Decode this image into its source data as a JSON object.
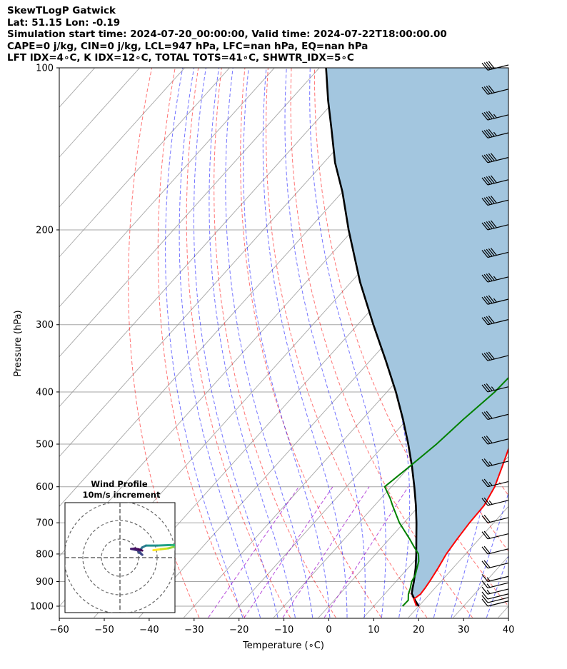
{
  "header": {
    "line1": "SkewTLogP Gatwick",
    "line2": "Lat: 51.15   Lon: -0.19",
    "line3": "Simulation start time: 2024-07-20_00:00:00, Valid time: 2024-07-22T18:00:00.00",
    "line4": "CAPE=0 j/kg, CIN=0 j/kg, LCL=947 hPa, LFC=nan hPa, EQ=nan hPa",
    "line5": "LFT IDX=4∘C, K IDX=12∘C, TOTAL TOTS=41∘C, SHWTR_IDX=5∘C"
  },
  "colors": {
    "temperature": "#ff0000",
    "dewpoint": "#008000",
    "parcel": "#000000",
    "shade": "#a3c6df",
    "dry_adiabat": "#ff0000",
    "moist_adiabat": "#0000ff",
    "mixing_ratio": "#9900cc",
    "isotherm": "#888888"
  },
  "chart_data": [
    {
      "type": "line",
      "subtype": "skew-t log-p",
      "xlabel": "Temperature (∘C)",
      "ylabel": "Pressure (hPa)",
      "xlim": [
        -60,
        40
      ],
      "ylim": [
        1050,
        100
      ],
      "x_ticks": [
        "−60",
        "−50",
        "−40",
        "−30",
        "−20",
        "−10",
        "0",
        "10",
        "20",
        "30",
        "40"
      ],
      "y_ticks": [
        "100",
        "200",
        "300",
        "400",
        "500",
        "600",
        "700",
        "800",
        "900",
        "1000"
      ],
      "y_scale": "log",
      "grid": true,
      "series": [
        {
          "key": "temperature",
          "p": [
            1000,
            970,
            950,
            925,
            900,
            850,
            800,
            750,
            700,
            650,
            600,
            550,
            500,
            450,
            400,
            350,
            300,
            270,
            250,
            230,
            210,
            200,
            190,
            180,
            170,
            160,
            150,
            140,
            130,
            120,
            110,
            105,
            100
          ],
          "values": [
            19.5,
            17.5,
            18.0,
            17.8,
            17.5,
            16.7,
            15.7,
            15.1,
            14.6,
            14.4,
            13.0,
            10.6,
            7.9,
            4.4,
            0.4,
            -4.1,
            -9.4,
            -12.2,
            -14.5,
            -16.5,
            -19.0,
            -20.3,
            -20.7,
            -21.5,
            -22.3,
            -23.0,
            -24.0,
            -25.0,
            -26.0,
            -27.0,
            -28.0,
            -28.6,
            -29.4
          ]
        },
        {
          "key": "dewpoint",
          "p": [
            1000,
            975,
            950,
            925,
            900,
            875,
            850,
            825,
            800,
            775,
            750,
            700,
            650,
            630,
            600,
            550,
            500,
            450,
            400,
            350,
            300,
            250,
            220,
            200,
            190,
            180,
            170,
            160,
            150,
            145,
            140,
            130,
            120,
            110,
            100
          ],
          "values": [
            16.4,
            16.5,
            15.3,
            14.5,
            13.5,
            13.0,
            12.0,
            11.0,
            9.5,
            7.0,
            4.5,
            -1.0,
            -6.0,
            -8.0,
            -11.5,
            -10.0,
            -8.5,
            -7.5,
            -6.0,
            -5.5,
            -5.5,
            -6.0,
            -6.5,
            -6.8,
            -7.5,
            -8.5,
            -11.0,
            -14.0,
            -17.0,
            -17.7,
            -17.0,
            -16.5,
            -16.0,
            -15.7,
            -15.3
          ]
        },
        {
          "key": "parcel",
          "p": [
            1000,
            975,
            947,
            925,
            900,
            850,
            800,
            750,
            700,
            650,
            600,
            550,
            500,
            450,
            400,
            350,
            300,
            250,
            200,
            170,
            150,
            130,
            115,
            100
          ],
          "values": [
            20.0,
            18.0,
            15.9,
            15.0,
            14.0,
            11.7,
            9.0,
            6.0,
            2.8,
            -0.8,
            -4.9,
            -9.5,
            -14.8,
            -20.9,
            -28.0,
            -36.5,
            -46.5,
            -58.0,
            -71.0,
            -80.0,
            -87.5,
            -95.0,
            -101.5,
            -108.5
          ]
        }
      ]
    },
    {
      "type": "wind-barbs",
      "p": [
        1000,
        985,
        970,
        950,
        925,
        900,
        850,
        800,
        750,
        700,
        650,
        600,
        550,
        500,
        450,
        400,
        350,
        300,
        275,
        250,
        225,
        200,
        180,
        165,
        150,
        135,
        125,
        112,
        101
      ],
      "values_kt": [
        8,
        10,
        12,
        15,
        15,
        17,
        20,
        22,
        22,
        22,
        24,
        25,
        27,
        30,
        32,
        35,
        38,
        42,
        45,
        47,
        50,
        52,
        52,
        50,
        48,
        47,
        45,
        42,
        40
      ]
    },
    {
      "type": "hodograph",
      "title": "Wind Profile",
      "subtitle": "10m/s increment",
      "rings_ms": [
        10,
        20,
        30
      ],
      "u": [
        18,
        22,
        26,
        29,
        30,
        30,
        27,
        20,
        14,
        12,
        10,
        12,
        10,
        6,
        8,
        10,
        12
      ],
      "v": [
        4,
        4.5,
        5,
        5.8,
        6.2,
        6.8,
        6.8,
        6.5,
        6.5,
        5.5,
        3,
        1.5,
        3.8,
        4.7,
        4.9,
        4.5,
        3.8
      ]
    }
  ]
}
